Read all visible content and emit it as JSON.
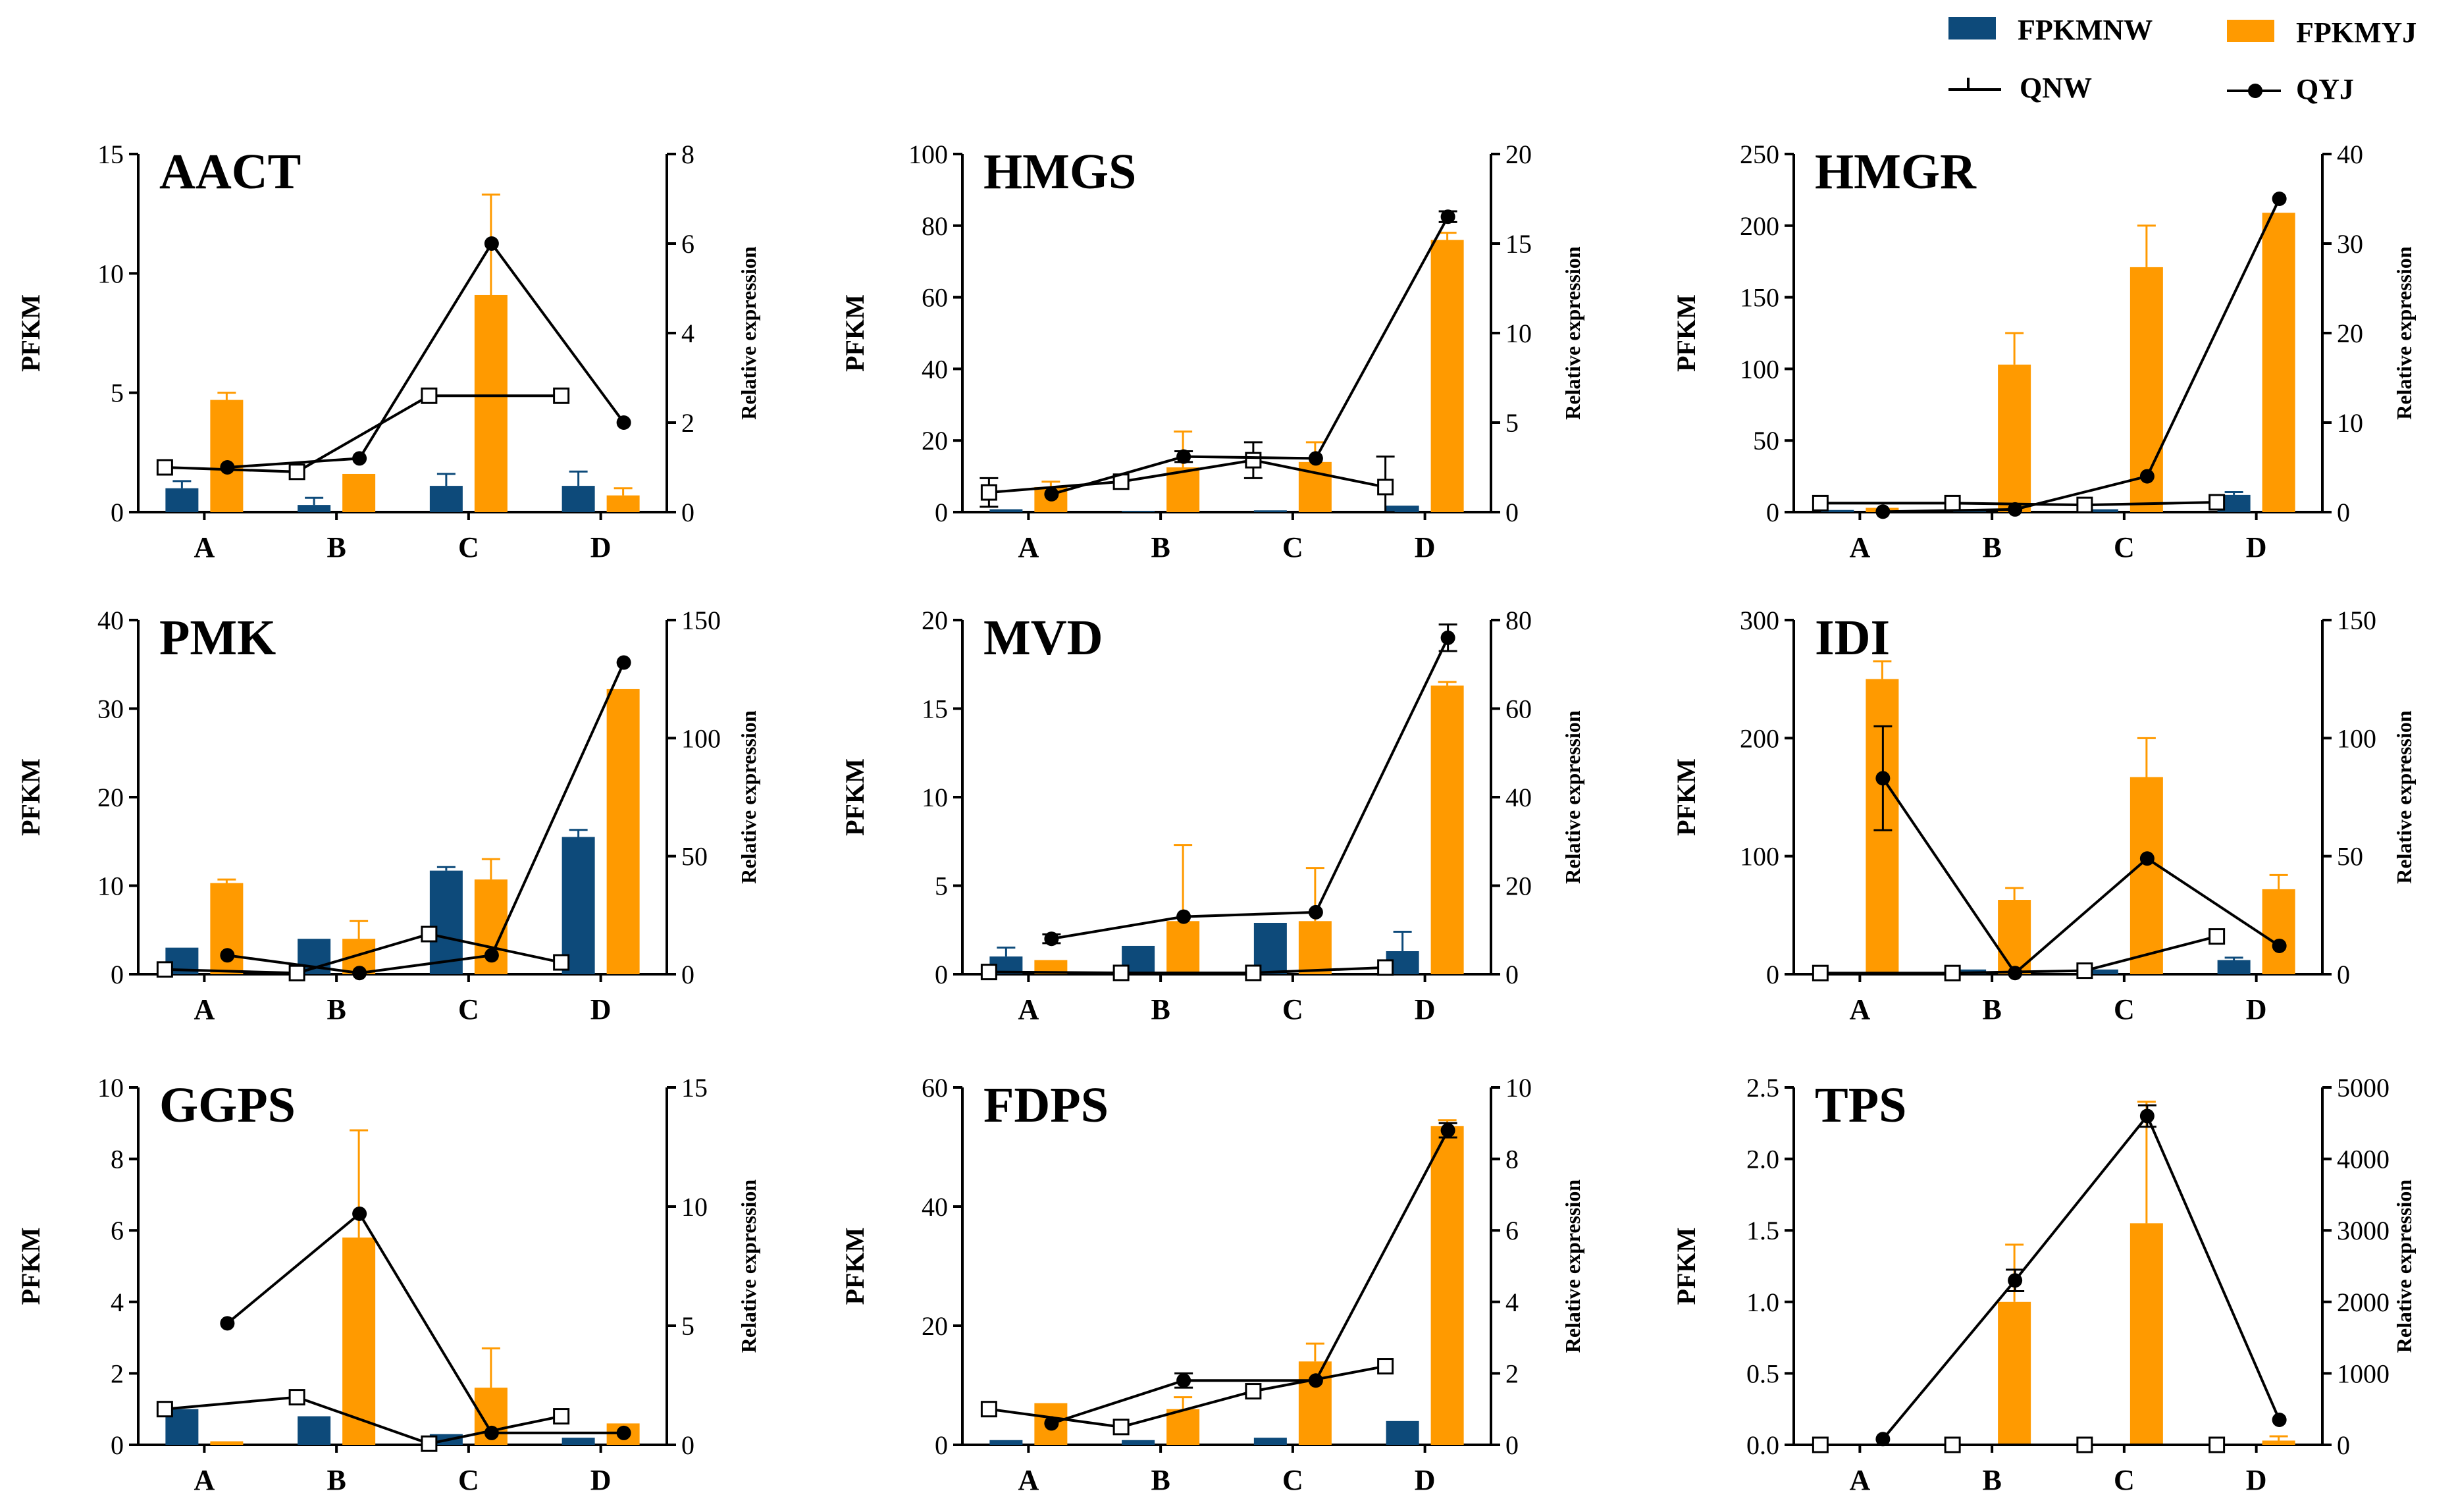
{
  "legend": {
    "items": [
      {
        "name": "FPKMNW",
        "kind": "bar",
        "color": "#0d4a7a"
      },
      {
        "name": "FPKMYJ",
        "kind": "bar",
        "color": "#ff9a00"
      },
      {
        "name": "QNW",
        "kind": "line-open-square",
        "color": "#000000"
      },
      {
        "name": "QYJ",
        "kind": "line-filled-circle",
        "color": "#000000"
      }
    ]
  },
  "colors": {
    "nw": "#0d4a7a",
    "yj": "#ff9a00",
    "line": "#000000"
  },
  "chart_data": [
    {
      "type": "bar+line",
      "title": "AACT",
      "categories": [
        "A",
        "B",
        "C",
        "D"
      ],
      "ylabel": "PFKM",
      "y2label": "Relative expression",
      "ylim": [
        0,
        15
      ],
      "yticks": [
        0,
        5,
        10,
        15
      ],
      "y2lim": [
        0,
        8
      ],
      "y2ticks": [
        0,
        2,
        4,
        6,
        8
      ],
      "series": [
        {
          "name": "FPKMNW",
          "kind": "bar",
          "axis": "left",
          "values": [
            1.0,
            0.3,
            1.1,
            1.1
          ],
          "errors": [
            0.3,
            0.3,
            0.5,
            0.6
          ]
        },
        {
          "name": "FPKMYJ",
          "kind": "bar",
          "axis": "left",
          "values": [
            4.7,
            1.6,
            9.1,
            0.7
          ],
          "errors": [
            0.3,
            0,
            4.2,
            0.3
          ]
        },
        {
          "name": "QNW",
          "kind": "line",
          "axis": "right",
          "values": [
            1.0,
            0.9,
            2.6,
            2.6
          ],
          "errors": [
            0,
            0,
            0,
            0
          ]
        },
        {
          "name": "QYJ",
          "kind": "line",
          "axis": "right",
          "values": [
            1.0,
            1.2,
            6.0,
            2.0
          ],
          "errors": [
            0,
            0,
            0,
            0
          ]
        }
      ]
    },
    {
      "type": "bar+line",
      "title": "HMGS",
      "categories": [
        "A",
        "B",
        "C",
        "D"
      ],
      "ylabel": "PFKM",
      "y2label": "Relative expression",
      "ylim": [
        0,
        100
      ],
      "yticks": [
        0,
        20,
        40,
        60,
        80,
        100
      ],
      "y2lim": [
        0,
        20
      ],
      "y2ticks": [
        0,
        5,
        10,
        15,
        20
      ],
      "series": [
        {
          "name": "FPKMNW",
          "kind": "bar",
          "axis": "left",
          "values": [
            0.8,
            0.3,
            0.5,
            1.8
          ],
          "errors": [
            0,
            0,
            0,
            0
          ]
        },
        {
          "name": "FPKMYJ",
          "kind": "bar",
          "axis": "left",
          "values": [
            7.0,
            12.5,
            14.0,
            76.0
          ],
          "errors": [
            1.5,
            10.0,
            5.5,
            2.0
          ]
        },
        {
          "name": "QNW",
          "kind": "line",
          "axis": "right",
          "values": [
            1.1,
            1.7,
            2.9,
            1.4
          ],
          "errors": [
            0.8,
            0,
            1.0,
            1.7
          ]
        },
        {
          "name": "QYJ",
          "kind": "line",
          "axis": "right",
          "values": [
            1.0,
            3.1,
            3.0,
            16.5
          ],
          "errors": [
            0,
            0.3,
            0,
            0.3
          ]
        }
      ]
    },
    {
      "type": "bar+line",
      "title": "HMGR",
      "categories": [
        "A",
        "B",
        "C",
        "D"
      ],
      "ylabel": "PFKM",
      "y2label": "Relative expression",
      "ylim": [
        0,
        250
      ],
      "yticks": [
        0,
        50,
        100,
        150,
        200,
        250
      ],
      "y2lim": [
        0,
        40
      ],
      "y2ticks": [
        0,
        10,
        20,
        30,
        40
      ],
      "series": [
        {
          "name": "FPKMNW",
          "kind": "bar",
          "axis": "left",
          "values": [
            1.5,
            1.0,
            2.0,
            12.0
          ],
          "errors": [
            0,
            0,
            0,
            2.0
          ]
        },
        {
          "name": "FPKMYJ",
          "kind": "bar",
          "axis": "left",
          "values": [
            3.0,
            103.0,
            171.0,
            209.0
          ],
          "errors": [
            0,
            22.0,
            29.0,
            0
          ]
        },
        {
          "name": "QNW",
          "kind": "line",
          "axis": "right",
          "values": [
            1.0,
            1.0,
            0.8,
            1.1
          ],
          "errors": [
            0,
            0,
            0,
            0
          ]
        },
        {
          "name": "QYJ",
          "kind": "line",
          "axis": "right",
          "values": [
            0.05,
            0.3,
            4.0,
            35.0
          ],
          "errors": [
            0,
            0,
            0,
            0
          ]
        }
      ]
    },
    {
      "type": "bar+line",
      "title": "PMK",
      "categories": [
        "A",
        "B",
        "C",
        "D"
      ],
      "ylabel": "PFKM",
      "y2label": "Relative expression",
      "ylim": [
        0,
        40
      ],
      "yticks": [
        0,
        10,
        20,
        30,
        40
      ],
      "y2lim": [
        0,
        150
      ],
      "y2ticks": [
        0,
        50,
        100,
        150
      ],
      "series": [
        {
          "name": "FPKMNW",
          "kind": "bar",
          "axis": "left",
          "values": [
            3.0,
            4.0,
            11.7,
            15.5
          ],
          "errors": [
            0,
            0,
            0.4,
            0.8
          ]
        },
        {
          "name": "FPKMYJ",
          "kind": "bar",
          "axis": "left",
          "values": [
            10.3,
            4.0,
            10.7,
            32.2
          ],
          "errors": [
            0.4,
            2.0,
            2.3,
            0
          ]
        },
        {
          "name": "QNW",
          "kind": "line",
          "axis": "right",
          "values": [
            2.0,
            0.5,
            17.0,
            5.0
          ],
          "errors": [
            0,
            0,
            0,
            0
          ]
        },
        {
          "name": "QYJ",
          "kind": "line",
          "axis": "right",
          "values": [
            8.0,
            0.5,
            8.0,
            132.0
          ],
          "errors": [
            0,
            0,
            0,
            0
          ]
        }
      ]
    },
    {
      "type": "bar+line",
      "title": "MVD",
      "categories": [
        "A",
        "B",
        "C",
        "D"
      ],
      "ylabel": "PFKM",
      "y2label": "Relative expression",
      "ylim": [
        0,
        20
      ],
      "yticks": [
        0,
        5,
        10,
        15,
        20
      ],
      "y2lim": [
        0,
        80
      ],
      "y2ticks": [
        0,
        20,
        40,
        60,
        80
      ],
      "series": [
        {
          "name": "FPKMNW",
          "kind": "bar",
          "axis": "left",
          "values": [
            1.0,
            1.6,
            2.9,
            1.3
          ],
          "errors": [
            0.5,
            0,
            0,
            1.1
          ]
        },
        {
          "name": "FPKMYJ",
          "kind": "bar",
          "axis": "left",
          "values": [
            0.8,
            3.0,
            3.0,
            16.3
          ],
          "errors": [
            0,
            4.3,
            3.0,
            0.2
          ]
        },
        {
          "name": "QNW",
          "kind": "line",
          "axis": "right",
          "values": [
            0.5,
            0.3,
            0.3,
            1.5
          ],
          "errors": [
            0,
            0,
            0,
            0
          ]
        },
        {
          "name": "QYJ",
          "kind": "line",
          "axis": "right",
          "values": [
            8.0,
            13.0,
            14.0,
            76.0
          ],
          "errors": [
            1.0,
            0,
            0,
            3.0
          ]
        }
      ]
    },
    {
      "type": "bar+line",
      "title": "IDI",
      "categories": [
        "A",
        "B",
        "C",
        "D"
      ],
      "ylabel": "PFKM",
      "y2label": "Relative expression",
      "ylim": [
        0,
        300
      ],
      "yticks": [
        0,
        100,
        200,
        300
      ],
      "y2lim": [
        0,
        150
      ],
      "y2ticks": [
        0,
        50,
        100,
        150
      ],
      "series": [
        {
          "name": "FPKMNW",
          "kind": "bar",
          "axis": "left",
          "values": [
            0,
            4.0,
            4.0,
            12.0
          ],
          "errors": [
            0,
            0,
            0,
            2.0
          ]
        },
        {
          "name": "FPKMYJ",
          "kind": "bar",
          "axis": "left",
          "values": [
            250.0,
            63.0,
            167.0,
            72.0
          ],
          "errors": [
            15.0,
            10.0,
            33.0,
            12.0
          ]
        },
        {
          "name": "QNW",
          "kind": "line",
          "axis": "right",
          "values": [
            0.5,
            0.5,
            1.5,
            16.0
          ],
          "errors": [
            0,
            0,
            0,
            0
          ]
        },
        {
          "name": "QYJ",
          "kind": "line",
          "axis": "right",
          "values": [
            83.0,
            0.5,
            49.0,
            12.0
          ],
          "errors": [
            22.0,
            0,
            0,
            0
          ]
        }
      ]
    },
    {
      "type": "bar+line",
      "title": "GGPS",
      "categories": [
        "A",
        "B",
        "C",
        "D"
      ],
      "ylabel": "PFKM",
      "y2label": "Relative expression",
      "ylim": [
        0,
        10
      ],
      "yticks": [
        0,
        2,
        4,
        6,
        8,
        10
      ],
      "y2lim": [
        0,
        15
      ],
      "y2ticks": [
        0,
        5,
        10,
        15
      ],
      "series": [
        {
          "name": "FPKMNW",
          "kind": "bar",
          "axis": "left",
          "values": [
            1.0,
            0.8,
            0.3,
            0.2
          ],
          "errors": [
            0,
            0,
            0,
            0
          ]
        },
        {
          "name": "FPKMYJ",
          "kind": "bar",
          "axis": "left",
          "values": [
            0.1,
            5.8,
            1.6,
            0.6
          ],
          "errors": [
            0,
            3.0,
            1.1,
            0
          ]
        },
        {
          "name": "QNW",
          "kind": "line",
          "axis": "right",
          "values": [
            1.5,
            2.0,
            0.05,
            1.2
          ],
          "errors": [
            0,
            0,
            0,
            0
          ]
        },
        {
          "name": "QYJ",
          "kind": "line",
          "axis": "right",
          "values": [
            5.1,
            9.7,
            0.5,
            0.5
          ],
          "errors": [
            0,
            0,
            0,
            0
          ]
        }
      ]
    },
    {
      "type": "bar+line",
      "title": "FDPS",
      "categories": [
        "A",
        "B",
        "C",
        "D"
      ],
      "ylabel": "PFKM",
      "y2label": "Relative expression",
      "ylim": [
        0,
        60
      ],
      "yticks": [
        0,
        20,
        40,
        60
      ],
      "y2lim": [
        0,
        10
      ],
      "y2ticks": [
        0,
        2,
        4,
        6,
        8,
        10
      ],
      "series": [
        {
          "name": "FPKMNW",
          "kind": "bar",
          "axis": "left",
          "values": [
            0.8,
            0.8,
            1.2,
            4.0
          ],
          "errors": [
            0,
            0,
            0,
            0
          ]
        },
        {
          "name": "FPKMYJ",
          "kind": "bar",
          "axis": "left",
          "values": [
            7.0,
            6.0,
            14.0,
            53.5
          ],
          "errors": [
            0,
            2.0,
            3.0,
            1.0
          ]
        },
        {
          "name": "QNW",
          "kind": "line",
          "axis": "right",
          "values": [
            1.0,
            0.5,
            1.5,
            2.2
          ],
          "errors": [
            0,
            0,
            0,
            0
          ]
        },
        {
          "name": "QYJ",
          "kind": "line",
          "axis": "right",
          "values": [
            0.6,
            1.8,
            1.8,
            8.8
          ],
          "errors": [
            0,
            0.2,
            0,
            0.2
          ]
        }
      ]
    },
    {
      "type": "bar+line",
      "title": "TPS",
      "categories": [
        "A",
        "B",
        "C",
        "D"
      ],
      "ylabel": "PFKM",
      "y2label": "Relative expression",
      "ylim": [
        0,
        2.5
      ],
      "yticks": [
        0,
        0.5,
        1.0,
        1.5,
        2.0,
        2.5
      ],
      "ytick_labels": [
        "0.0",
        "0.5",
        "1.0",
        "1.5",
        "2.0",
        "2.5"
      ],
      "y2lim": [
        0,
        5000
      ],
      "y2ticks": [
        0,
        1000,
        2000,
        3000,
        4000,
        5000
      ],
      "series": [
        {
          "name": "FPKMNW",
          "kind": "bar",
          "axis": "left",
          "values": [
            0,
            0,
            0,
            0
          ],
          "errors": [
            0,
            0,
            0,
            0
          ]
        },
        {
          "name": "FPKMYJ",
          "kind": "bar",
          "axis": "left",
          "values": [
            0,
            1.0,
            1.55,
            0.03
          ],
          "errors": [
            0,
            0.4,
            0.85,
            0.03
          ]
        },
        {
          "name": "QNW",
          "kind": "line",
          "axis": "right",
          "values": [
            0,
            0,
            0,
            0
          ],
          "errors": [
            0,
            0,
            0,
            0
          ]
        },
        {
          "name": "QYJ",
          "kind": "line",
          "axis": "right",
          "values": [
            80,
            2300,
            4600,
            350
          ],
          "errors": [
            0,
            150,
            150,
            0
          ]
        }
      ]
    }
  ]
}
